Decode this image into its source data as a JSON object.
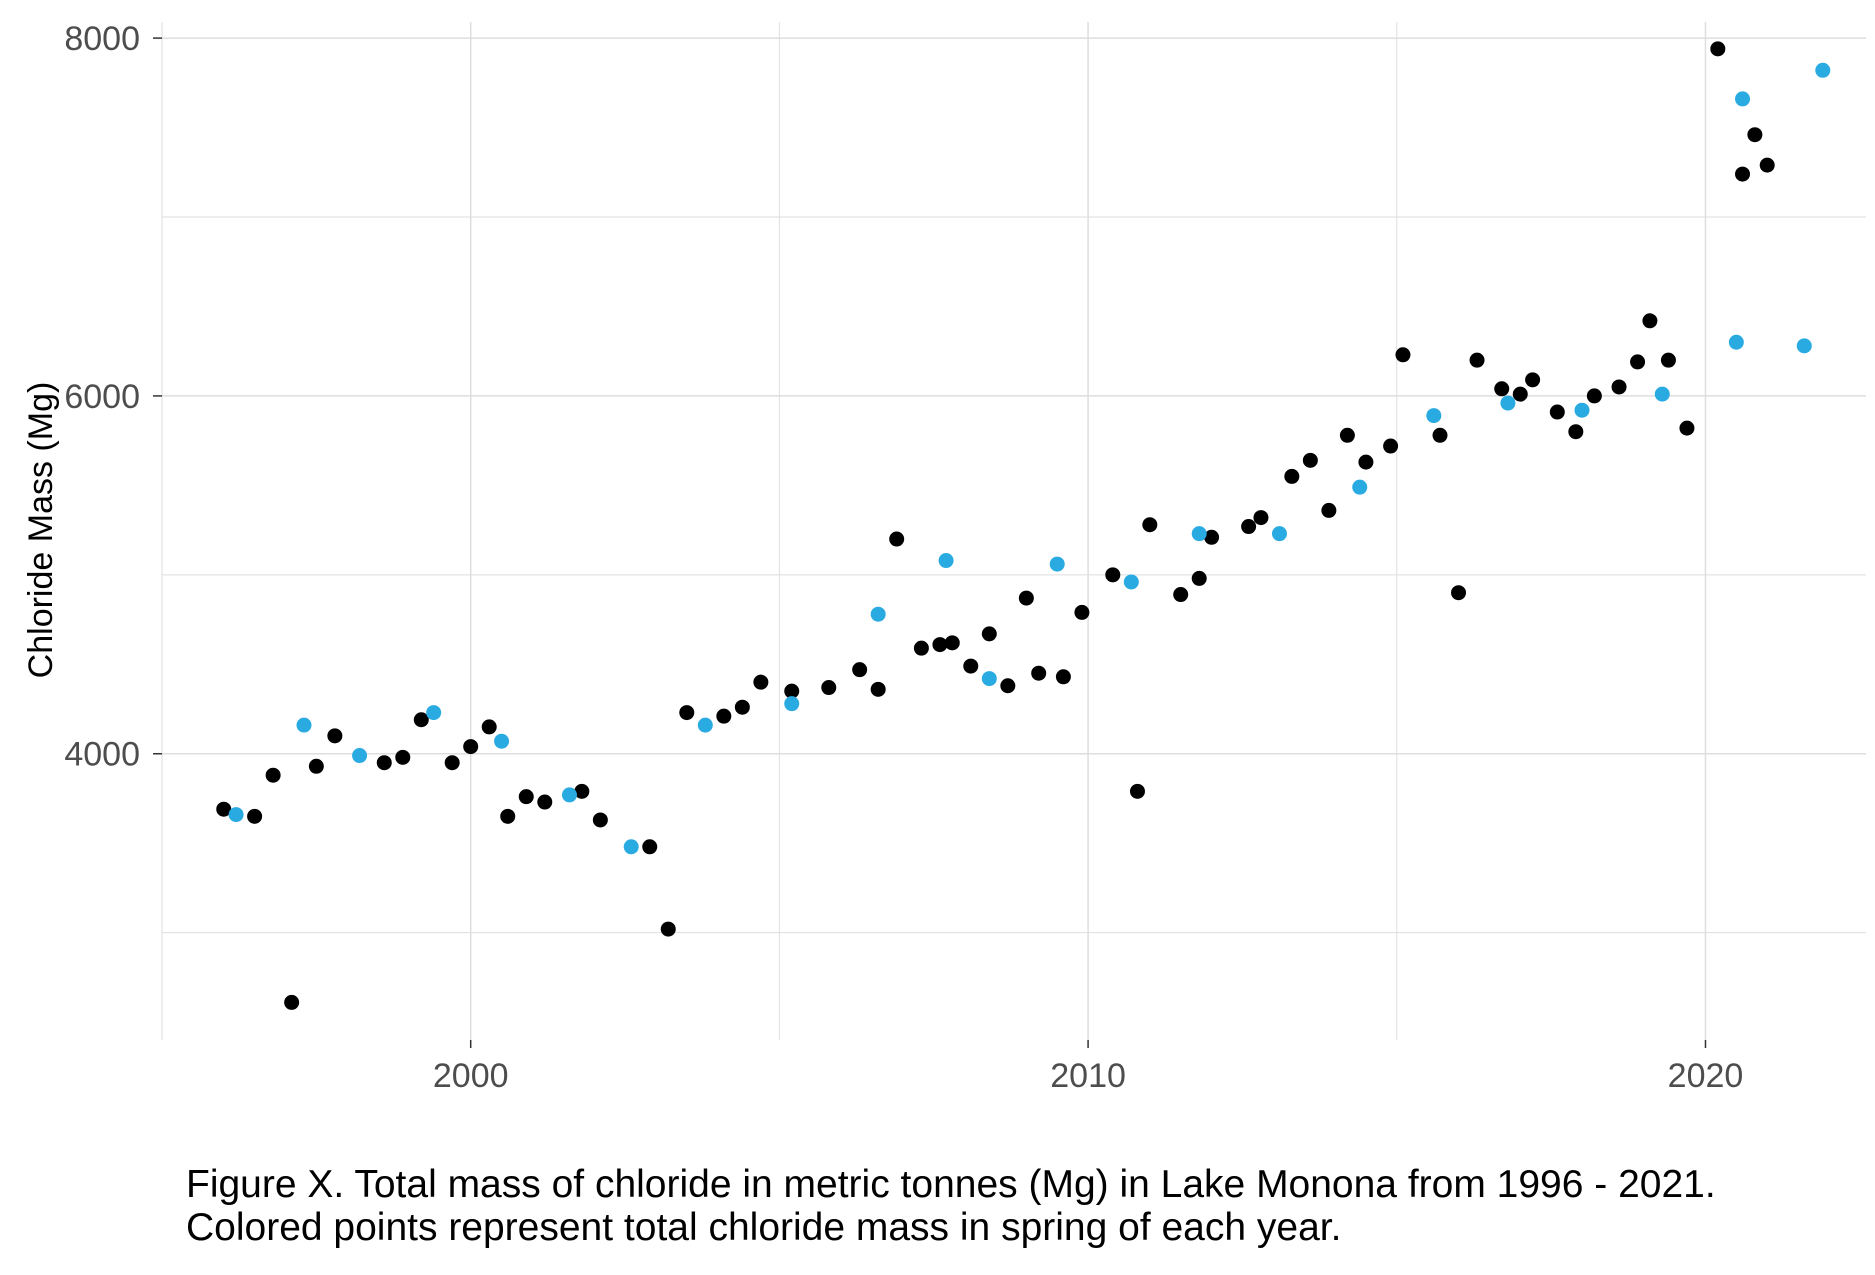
{
  "chart_data": {
    "type": "scatter",
    "title": "",
    "xlabel": "",
    "ylabel": "Chloride Mass (Mg)",
    "xlim": [
      1995.0,
      2022.6
    ],
    "ylim": [
      2400,
      8090
    ],
    "x_ticks": [
      2000,
      2010,
      2020
    ],
    "x_tick_labels": [
      "2000",
      "2010",
      "2020"
    ],
    "y_ticks": [
      4000,
      6000,
      8000
    ],
    "y_tick_labels": [
      "4000",
      "6000",
      "8000"
    ],
    "grid": true,
    "legend": "none",
    "colors": {
      "default": "#000000",
      "spring": "#29abe2",
      "grid": "#dedede",
      "tick_label": "#4d4d4d"
    },
    "series": [
      {
        "color_key": "default",
        "points": [
          [
            1996.0,
            3690
          ],
          [
            1996.5,
            3650
          ],
          [
            1996.8,
            3880
          ],
          [
            1997.1,
            2610
          ],
          [
            1997.5,
            3930
          ],
          [
            1997.8,
            4100
          ],
          [
            1998.6,
            3950
          ],
          [
            1998.9,
            3980
          ],
          [
            1999.2,
            4190
          ],
          [
            1999.7,
            3950
          ],
          [
            2000.0,
            4040
          ],
          [
            2000.3,
            4150
          ],
          [
            2000.6,
            3650
          ],
          [
            2000.9,
            3760
          ],
          [
            2001.2,
            3730
          ],
          [
            2001.8,
            3790
          ],
          [
            2002.1,
            3630
          ],
          [
            2002.9,
            3480
          ],
          [
            2003.2,
            3020
          ],
          [
            2003.5,
            4230
          ],
          [
            2004.1,
            4210
          ],
          [
            2004.4,
            4260
          ],
          [
            2004.7,
            4400
          ],
          [
            2005.2,
            4350
          ],
          [
            2005.8,
            4370
          ],
          [
            2006.3,
            4470
          ],
          [
            2006.6,
            4360
          ],
          [
            2006.9,
            5200
          ],
          [
            2007.3,
            4590
          ],
          [
            2007.6,
            4610
          ],
          [
            2007.8,
            4620
          ],
          [
            2008.1,
            4490
          ],
          [
            2008.4,
            4670
          ],
          [
            2008.7,
            4380
          ],
          [
            2009.0,
            4870
          ],
          [
            2009.2,
            4450
          ],
          [
            2009.6,
            4430
          ],
          [
            2009.9,
            4790
          ],
          [
            2010.4,
            5000
          ],
          [
            2010.8,
            3790
          ],
          [
            2011.0,
            5280
          ],
          [
            2011.5,
            4890
          ],
          [
            2011.8,
            4980
          ],
          [
            2012.0,
            5210
          ],
          [
            2012.6,
            5270
          ],
          [
            2012.8,
            5320
          ],
          [
            2013.3,
            5550
          ],
          [
            2013.6,
            5640
          ],
          [
            2013.9,
            5360
          ],
          [
            2014.2,
            5780
          ],
          [
            2014.5,
            5630
          ],
          [
            2014.9,
            5720
          ],
          [
            2015.1,
            6230
          ],
          [
            2015.7,
            5780
          ],
          [
            2016.0,
            4900
          ],
          [
            2016.3,
            6200
          ],
          [
            2016.7,
            6040
          ],
          [
            2017.0,
            6010
          ],
          [
            2017.2,
            6090
          ],
          [
            2017.6,
            5910
          ],
          [
            2017.9,
            5800
          ],
          [
            2018.2,
            6000
          ],
          [
            2018.6,
            6050
          ],
          [
            2018.9,
            6190
          ],
          [
            2019.1,
            6420
          ],
          [
            2019.4,
            6200
          ],
          [
            2019.7,
            5820
          ],
          [
            2020.2,
            7940
          ],
          [
            2020.6,
            7240
          ],
          [
            2020.8,
            7460
          ],
          [
            2021.0,
            7290
          ]
        ]
      },
      {
        "color_key": "spring",
        "points": [
          [
            1996.2,
            3660
          ],
          [
            1997.3,
            4160
          ],
          [
            1998.2,
            3990
          ],
          [
            1999.4,
            4230
          ],
          [
            2000.5,
            4070
          ],
          [
            2001.6,
            3770
          ],
          [
            2002.6,
            3480
          ],
          [
            2003.8,
            4160
          ],
          [
            2005.2,
            4280
          ],
          [
            2006.6,
            4780
          ],
          [
            2007.7,
            5080
          ],
          [
            2008.4,
            4420
          ],
          [
            2009.5,
            5060
          ],
          [
            2010.7,
            4960
          ],
          [
            2011.8,
            5230
          ],
          [
            2013.1,
            5230
          ],
          [
            2014.4,
            5490
          ],
          [
            2015.6,
            5890
          ],
          [
            2016.8,
            5960
          ],
          [
            2018.0,
            5920
          ],
          [
            2019.3,
            6010
          ],
          [
            2020.5,
            6300
          ],
          [
            2021.6,
            6280
          ],
          [
            2020.6,
            7660
          ],
          [
            2021.9,
            7820
          ]
        ]
      }
    ]
  },
  "caption": {
    "line1": "Figure X. Total mass of chloride in metric tonnes (Mg) in Lake Monona from 1996 - 2021.",
    "line2": "Colored points represent total chloride mass in spring of each year."
  }
}
